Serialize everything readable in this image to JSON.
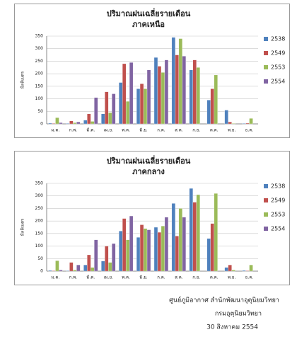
{
  "chart_data": [
    {
      "type": "bar",
      "title": "ปริมาณฝนเฉลี่ยรายเดือน",
      "subtitle": "ภาคเหนือ",
      "y_label": "มิลลิเมตร",
      "categories": [
        "ม.ค.",
        "ก.พ.",
        "มี.ค.",
        "เม.ย.",
        "พ.ค.",
        "มิ.ย.",
        "ก.ค.",
        "ส.ค.",
        "ก.ย.",
        "ต.ค.",
        "พ.ย.",
        "ธ.ค."
      ],
      "series": [
        {
          "name": "2538",
          "color": "#4f81bd",
          "values": [
            3,
            2,
            15,
            40,
            165,
            140,
            265,
            345,
            215,
            95,
            55,
            2
          ]
        },
        {
          "name": "2549",
          "color": "#c0504d",
          "values": [
            2,
            12,
            40,
            128,
            240,
            160,
            230,
            275,
            255,
            140,
            8,
            3
          ]
        },
        {
          "name": "2553",
          "color": "#9bbb59",
          "values": [
            25,
            5,
            10,
            45,
            90,
            140,
            205,
            340,
            225,
            195,
            2,
            22
          ]
        },
        {
          "name": "2554",
          "color": "#8064a2",
          "values": [
            5,
            8,
            105,
            120,
            245,
            215,
            255,
            270,
            null,
            null,
            null,
            null
          ]
        }
      ],
      "ylim": [
        0,
        350
      ],
      "yticks": [
        0,
        50,
        100,
        150,
        200,
        250,
        300,
        350
      ],
      "grid": true,
      "legend": "right"
    },
    {
      "type": "bar",
      "title": "ปริมาณฝนเฉลี่ยรายเดือน",
      "subtitle": "ภาคกลาง",
      "y_label": "มิลลิเมตร",
      "categories": [
        "ม.ค.",
        "ก.พ.",
        "มี.ค.",
        "เม.ย.",
        "พ.ค.",
        "มิ.ย.",
        "ก.ค.",
        "ส.ค.",
        "ก.ย.",
        "ต.ค.",
        "พ.ย.",
        "ธ.ค."
      ],
      "series": [
        {
          "name": "2538",
          "color": "#4f81bd",
          "values": [
            3,
            2,
            25,
            40,
            160,
            135,
            175,
            270,
            330,
            130,
            15,
            3
          ]
        },
        {
          "name": "2549",
          "color": "#c0504d",
          "values": [
            2,
            35,
            65,
            100,
            210,
            185,
            155,
            140,
            275,
            190,
            25,
            2
          ]
        },
        {
          "name": "2553",
          "color": "#9bbb59",
          "values": [
            42,
            5,
            15,
            35,
            125,
            170,
            180,
            250,
            305,
            310,
            5,
            25
          ]
        },
        {
          "name": "2554",
          "color": "#8064a2",
          "values": [
            5,
            25,
            125,
            110,
            220,
            165,
            215,
            215,
            null,
            null,
            null,
            null
          ]
        }
      ],
      "ylim": [
        0,
        350
      ],
      "yticks": [
        0,
        50,
        100,
        150,
        200,
        250,
        300,
        350
      ],
      "grid": true,
      "legend": "right"
    }
  ],
  "footer": {
    "lines": [
      "ศูนย์ภูมิอากาศ สำนักพัฒนาอุตุนิยมวิทยา",
      "กรมอุตุนิยมวิทยา",
      "30 สิงหาคม 2554"
    ]
  }
}
